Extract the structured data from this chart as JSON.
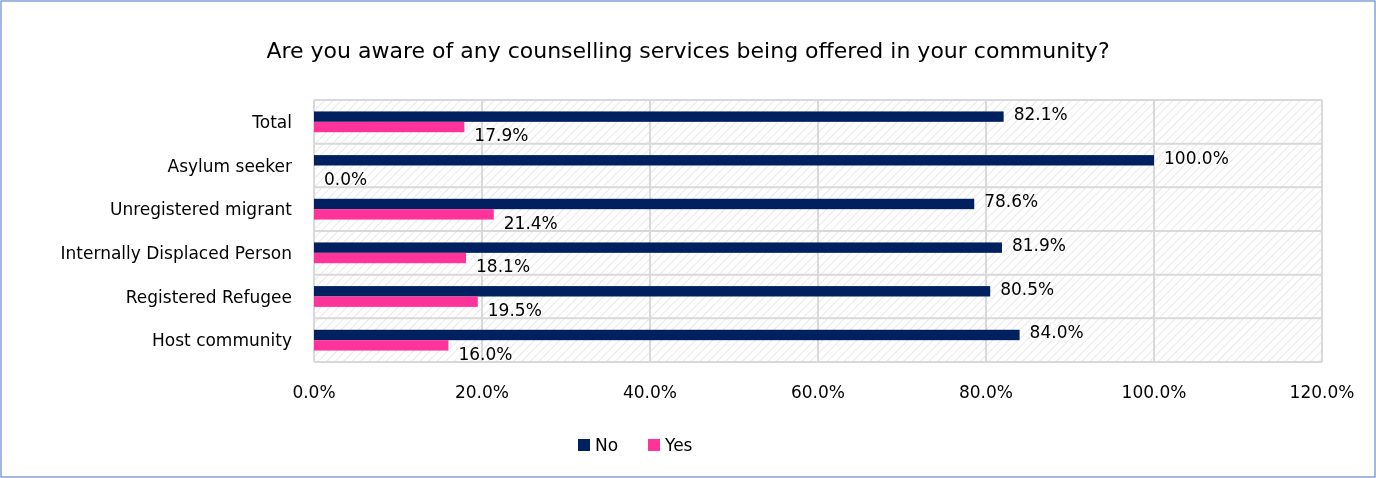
{
  "chart_data": {
    "type": "bar",
    "orientation": "horizontal",
    "title": "Are you aware of any counselling services being offered in your community?",
    "categories": [
      "Total",
      "Asylum seeker",
      "Unregistered migrant",
      "Internally Displaced Person",
      "Registered Refugee",
      "Host community"
    ],
    "series": [
      {
        "name": "No",
        "color": "#002060",
        "values": [
          82.1,
          100.0,
          78.6,
          81.9,
          80.5,
          84.0
        ],
        "value_labels": [
          "82.1%",
          "100.0%",
          "78.6%",
          "81.9%",
          "80.5%",
          "84.0%"
        ]
      },
      {
        "name": "Yes",
        "color": "#ff3399",
        "values": [
          17.9,
          0.0,
          21.4,
          18.1,
          19.5,
          16.0
        ],
        "value_labels": [
          "17.9%",
          "0.0%",
          "21.4%",
          "18.1%",
          "19.5%",
          "16.0%"
        ]
      }
    ],
    "xlim": [
      0,
      120
    ],
    "xticks": [
      {
        "value": 0,
        "label": "0.0%"
      },
      {
        "value": 20,
        "label": "20.0%"
      },
      {
        "value": 40,
        "label": "40.0%"
      },
      {
        "value": 60,
        "label": "60.0%"
      },
      {
        "value": 80,
        "label": "80.0%"
      },
      {
        "value": 100,
        "label": "100.0%"
      },
      {
        "value": 120,
        "label": "120.0%"
      }
    ],
    "grid": true,
    "legend": "bottom"
  }
}
